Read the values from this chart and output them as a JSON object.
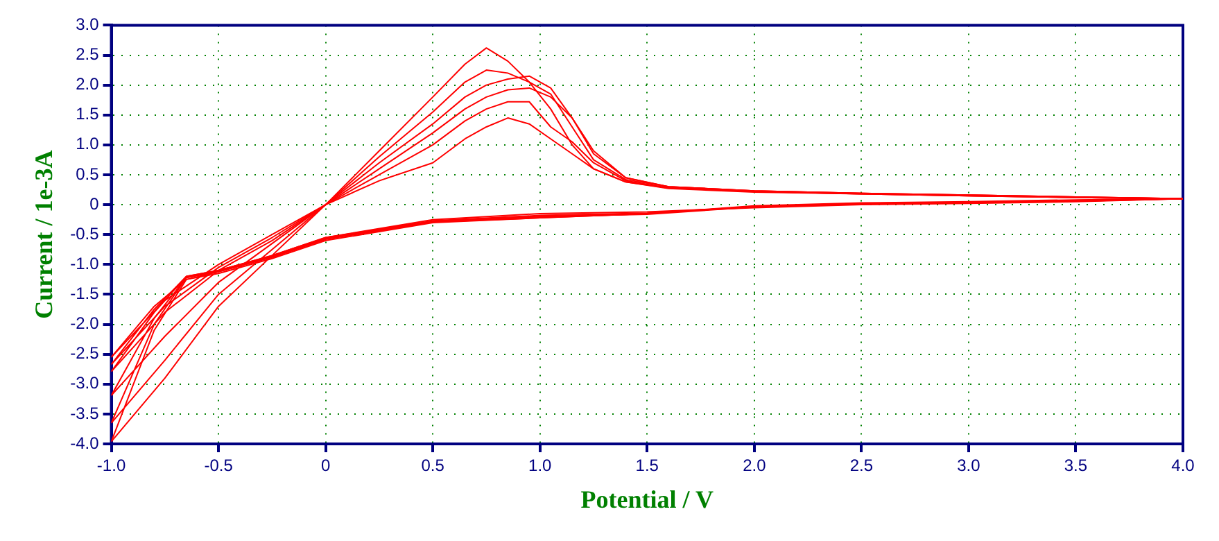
{
  "chart_data": {
    "type": "line",
    "xlabel": "Potential / V",
    "ylabel": "Current / 1e-3A",
    "xlim": [
      -1,
      4
    ],
    "ylim": [
      -4,
      3
    ],
    "xticks": [
      {
        "value": -1,
        "label": "-1.0"
      },
      -0.5,
      0,
      0.5,
      {
        "value": 1,
        "label": "1.0"
      },
      1.5,
      {
        "value": 2,
        "label": "2.0"
      },
      2.5,
      {
        "value": 3,
        "label": "3.0"
      },
      3.5,
      {
        "value": 4,
        "label": "4.0"
      }
    ],
    "yticks": [
      {
        "value": -4,
        "label": "-4.0"
      },
      -3.5,
      {
        "value": -3,
        "label": "-3.0"
      },
      -2.5,
      {
        "value": -2,
        "label": "-2.0"
      },
      -1.5,
      {
        "value": -1,
        "label": "-1.0"
      },
      -0.5,
      0,
      0.5,
      {
        "value": 1,
        "label": "1.0"
      },
      1.5,
      {
        "value": 2,
        "label": "2.0"
      },
      2.5,
      {
        "value": 3,
        "label": "3.0"
      }
    ],
    "grid": true,
    "legend": false,
    "marker": "none",
    "line_style": "solid",
    "series": [
      {
        "color": "#ff0000",
        "x": [
          -1,
          -0.75,
          -0.5,
          -0.25,
          0,
          0.25,
          0.5,
          0.65,
          0.75,
          0.85,
          0.95,
          1.05,
          1.15,
          1.25,
          1.4,
          1.6,
          2,
          2.5,
          3,
          3.5,
          4,
          3.5,
          3,
          2.5,
          2,
          1.5,
          1,
          0.5,
          0,
          -0.25,
          -0.5,
          -0.65,
          -0.8,
          -1
        ],
        "values": [
          -2.55,
          -1.6,
          -1.0,
          -0.5,
          0,
          0.9,
          1.8,
          2.35,
          2.62,
          2.4,
          2.05,
          1.6,
          1.0,
          0.6,
          0.38,
          0.28,
          0.22,
          0.18,
          0.15,
          0.12,
          0.1,
          0.05,
          0.02,
          0,
          -0.05,
          -0.12,
          -0.15,
          -0.25,
          -0.55,
          -0.85,
          -1.1,
          -1.2,
          -1.75,
          -2.67
        ]
      },
      {
        "color": "#ff0000",
        "x": [
          -1,
          -0.75,
          -0.5,
          -0.25,
          0,
          0.25,
          0.5,
          0.65,
          0.75,
          0.85,
          0.95,
          1.05,
          1.15,
          1.25,
          1.4,
          1.6,
          2,
          2.5,
          3,
          3.5,
          4,
          3.5,
          3,
          2.5,
          2,
          1.5,
          1,
          0.5,
          0,
          -0.25,
          -0.5,
          -0.65,
          -0.8,
          -1
        ],
        "values": [
          -2.67,
          -1.7,
          -1.05,
          -0.55,
          0,
          0.8,
          1.55,
          2.05,
          2.25,
          2.2,
          2.05,
          1.85,
          1.3,
          0.75,
          0.42,
          0.3,
          0.23,
          0.19,
          0.16,
          0.13,
          0.1,
          0.06,
          0.03,
          0.01,
          -0.04,
          -0.14,
          -0.18,
          -0.27,
          -0.55,
          -0.85,
          -1.1,
          -1.2,
          -1.8,
          -2.79
        ]
      },
      {
        "color": "#ff0000",
        "x": [
          -1,
          -0.75,
          -0.5,
          -0.25,
          0,
          0.25,
          0.5,
          0.65,
          0.75,
          0.85,
          0.95,
          1.05,
          1.15,
          1.25,
          1.4,
          1.6,
          2,
          2.5,
          3,
          3.5,
          4,
          3.5,
          3,
          2.5,
          2,
          1.5,
          1,
          0.5,
          0,
          -0.25,
          -0.5,
          -0.65,
          -0.8,
          -1
        ],
        "values": [
          -2.79,
          -1.8,
          -1.1,
          -0.6,
          0,
          0.7,
          1.35,
          1.8,
          2.0,
          2.1,
          2.15,
          1.95,
          1.45,
          0.85,
          0.45,
          0.3,
          0.23,
          0.19,
          0.16,
          0.13,
          0.1,
          0.06,
          0.03,
          0.01,
          -0.04,
          -0.16,
          -0.2,
          -0.28,
          -0.56,
          -0.86,
          -1.1,
          -1.22,
          -1.9,
          -3.19
        ]
      },
      {
        "color": "#ff0000",
        "x": [
          -1,
          -0.75,
          -0.5,
          -0.25,
          0,
          0.25,
          0.5,
          0.65,
          0.75,
          0.85,
          0.95,
          1.05,
          1.15,
          1.25,
          1.4,
          1.6,
          2,
          2.5,
          3,
          3.5,
          4,
          3.5,
          3,
          2.5,
          2,
          1.5,
          1,
          0.5,
          0,
          -0.25,
          -0.5,
          -0.65,
          -0.8,
          -1
        ],
        "values": [
          -3.19,
          -2.2,
          -1.3,
          -0.65,
          0,
          0.6,
          1.2,
          1.6,
          1.8,
          1.92,
          1.95,
          1.8,
          1.45,
          0.9,
          0.45,
          0.3,
          0.23,
          0.19,
          0.16,
          0.13,
          0.1,
          0.07,
          0.04,
          0.02,
          -0.03,
          -0.15,
          -0.2,
          -0.28,
          -0.57,
          -0.87,
          -1.12,
          -1.22,
          -2.0,
          -3.65
        ]
      },
      {
        "color": "#ff0000",
        "x": [
          -1,
          -0.75,
          -0.5,
          -0.25,
          0,
          0.25,
          0.5,
          0.65,
          0.75,
          0.85,
          0.95,
          1.05,
          1.15,
          1.25,
          1.4,
          1.6,
          2,
          2.5,
          3,
          3.5,
          4,
          3.5,
          3,
          2.5,
          2,
          1.5,
          1,
          0.5,
          0,
          -0.25,
          -0.5,
          -0.65,
          -0.8,
          -1
        ],
        "values": [
          -3.65,
          -2.6,
          -1.5,
          -0.75,
          0,
          0.5,
          1.0,
          1.4,
          1.6,
          1.72,
          1.72,
          1.3,
          1.05,
          0.7,
          0.4,
          0.28,
          0.22,
          0.18,
          0.15,
          0.12,
          0.1,
          0.07,
          0.04,
          0.02,
          -0.03,
          -0.15,
          -0.22,
          -0.29,
          -0.58,
          -0.88,
          -1.12,
          -1.25,
          -2.1,
          -3.96
        ]
      },
      {
        "color": "#ff0000",
        "x": [
          -1,
          -0.75,
          -0.5,
          -0.25,
          0,
          0.25,
          0.5,
          0.65,
          0.75,
          0.85,
          0.95,
          1.05,
          1.15,
          1.25,
          1.4,
          1.6,
          2,
          2.5,
          3,
          3.5,
          4,
          3.5,
          3,
          2.5,
          2,
          1.5,
          1,
          0.5,
          0,
          -0.25,
          -0.5,
          -0.65,
          -0.8,
          -1
        ],
        "values": [
          -3.96,
          -2.9,
          -1.7,
          -0.85,
          0,
          0.4,
          0.7,
          1.1,
          1.3,
          1.45,
          1.35,
          1.1,
          0.85,
          0.6,
          0.38,
          0.27,
          0.21,
          0.18,
          0.15,
          0.12,
          0.1,
          0.08,
          0.05,
          0.03,
          -0.02,
          -0.15,
          -0.22,
          -0.3,
          -0.6,
          -0.9,
          -1.15,
          -1.25,
          -1.7,
          -2.55
        ]
      }
    ]
  }
}
